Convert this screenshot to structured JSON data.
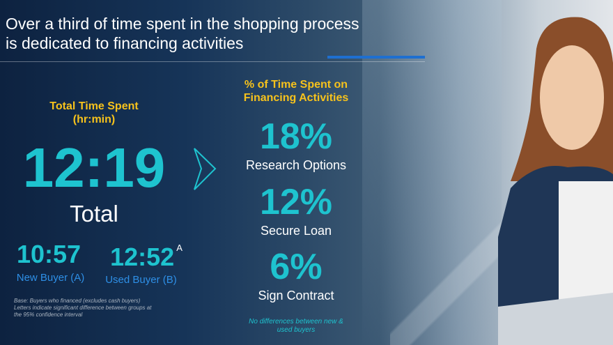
{
  "title": "Over a third of time spent in the shopping process is dedicated to financing activities",
  "left": {
    "heading": "Total Time Spent (hr:min)",
    "total_value": "12:19",
    "total_label": "Total",
    "groups": [
      {
        "value": "10:57",
        "label": "New Buyer (A)",
        "sig": ""
      },
      {
        "value": "12:52",
        "label": "Used Buyer (B)",
        "sig": "A"
      }
    ],
    "note": "Base: Buyers who financed (excludes cash buyers) Letters indicate significant difference between groups at the 95% confidence interval"
  },
  "right": {
    "heading": "% of Time Spent on Financing Activities",
    "items": [
      {
        "value": "18%",
        "label": "Research Options"
      },
      {
        "value": "12%",
        "label": "Secure Loan"
      },
      {
        "value": "6%",
        "label": "Sign Contract"
      }
    ],
    "note": "No differences between new & used buyers"
  },
  "colors": {
    "accent_teal": "#1ec3cf",
    "heading_yellow": "#f6c21c",
    "group_blue": "#2e8fe6"
  },
  "icons": [
    "chevron-right-icon"
  ]
}
